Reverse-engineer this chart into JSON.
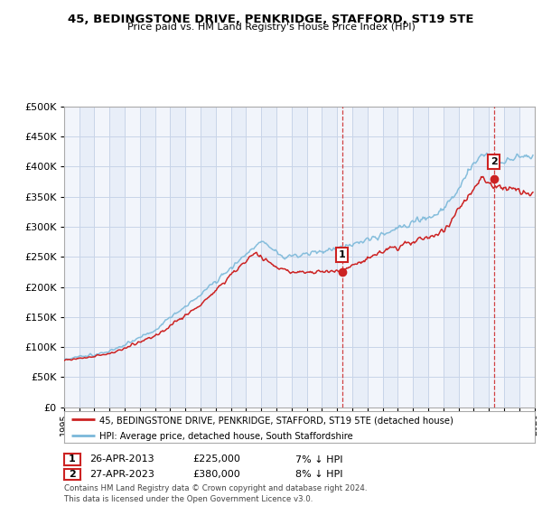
{
  "title": "45, BEDINGSTONE DRIVE, PENKRIDGE, STAFFORD, ST19 5TE",
  "subtitle": "Price paid vs. HM Land Registry's House Price Index (HPI)",
  "legend_line1": "45, BEDINGSTONE DRIVE, PENKRIDGE, STAFFORD, ST19 5TE (detached house)",
  "legend_line2": "HPI: Average price, detached house, South Staffordshire",
  "annotation1_date": "26-APR-2013",
  "annotation1_price": "£225,000",
  "annotation1_hpi": "7% ↓ HPI",
  "annotation2_date": "27-APR-2023",
  "annotation2_price": "£380,000",
  "annotation2_hpi": "8% ↓ HPI",
  "footer": "Contains HM Land Registry data © Crown copyright and database right 2024.\nThis data is licensed under the Open Government Licence v3.0.",
  "sale1_year": 2013.32,
  "sale1_value": 225000,
  "sale2_year": 2023.32,
  "sale2_value": 380000,
  "hpi_color": "#7ab8d9",
  "price_color": "#cc2222",
  "grid_color": "#c8d4e8",
  "band_color": "#dce8f4",
  "plot_bg": "#e8eef8",
  "xmin": 1995,
  "xmax": 2026,
  "ymin": 0,
  "ymax": 500000
}
